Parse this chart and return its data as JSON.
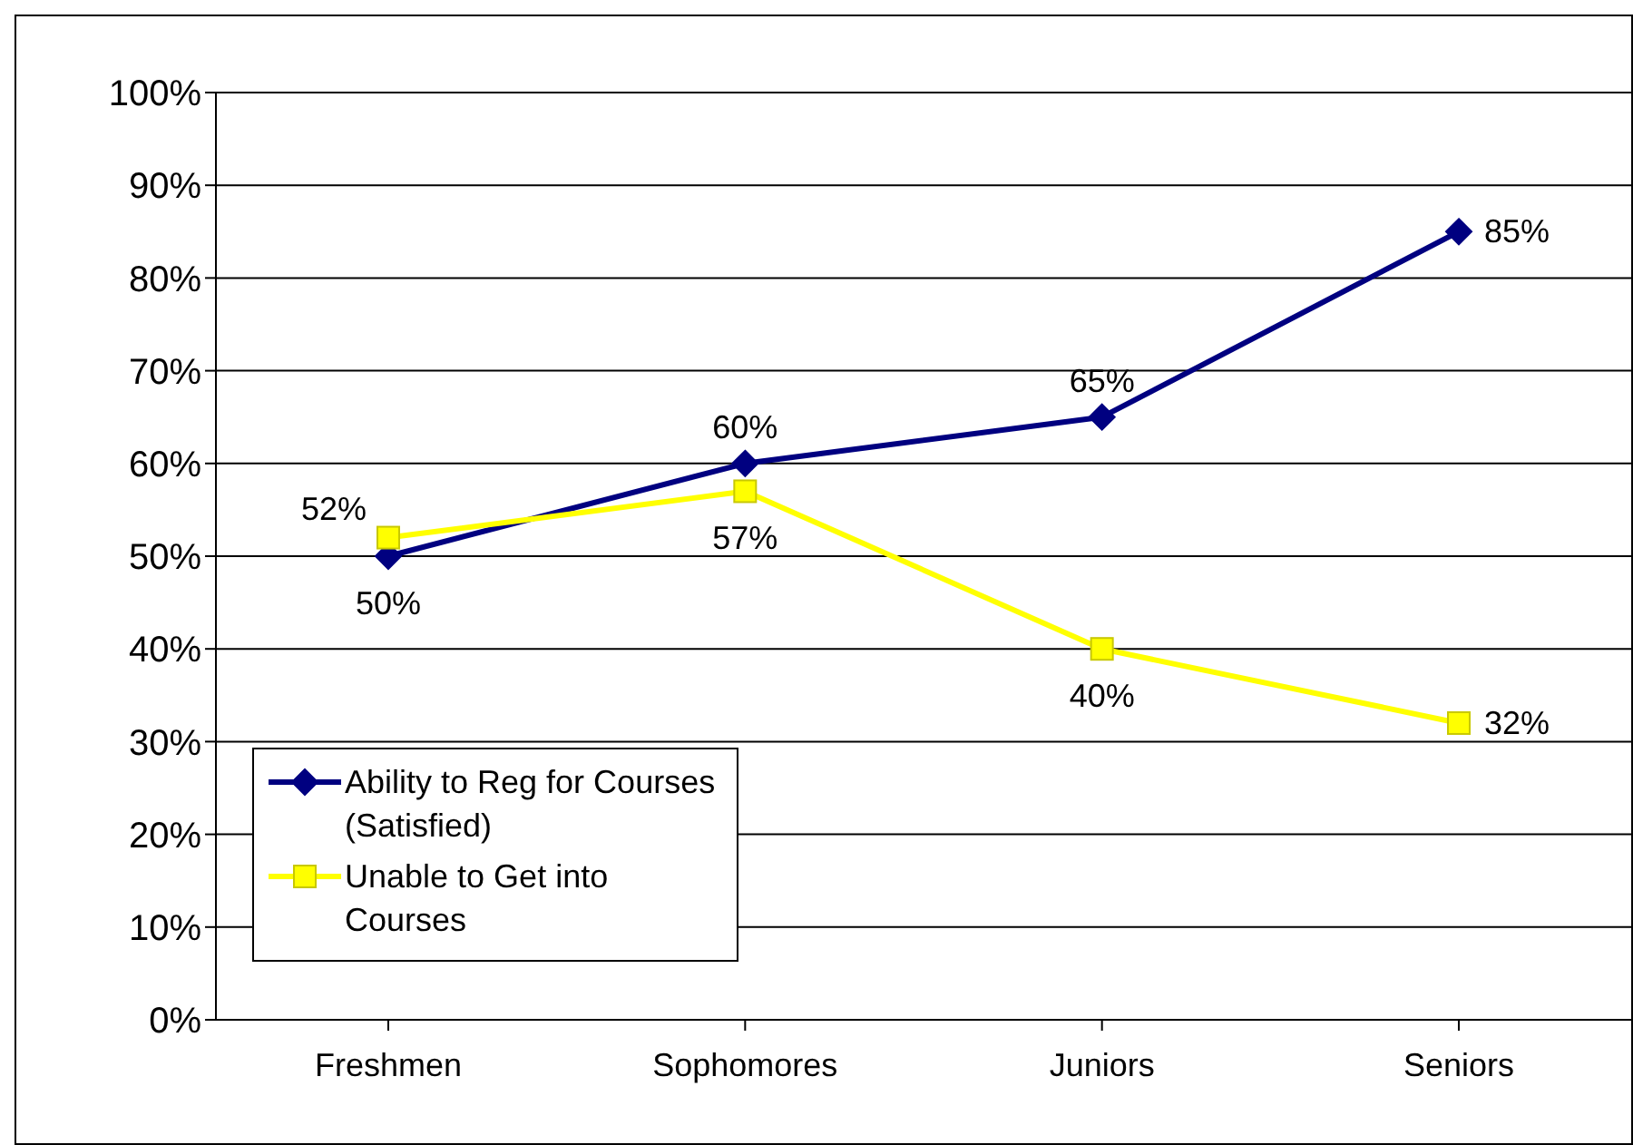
{
  "chart_data": {
    "type": "line",
    "categories": [
      "Freshmen",
      "Sophomores",
      "Juniors",
      "Seniors"
    ],
    "series": [
      {
        "name": "Ability to Reg for Courses (Satisfied)",
        "color": "#000080",
        "marker": "diamond",
        "values": [
          50,
          60,
          65,
          85
        ],
        "value_labels": [
          "50%",
          "60%",
          "65%",
          "85%"
        ]
      },
      {
        "name": "Unable to Get into Courses",
        "color": "#ffff00",
        "marker": "square",
        "values": [
          52,
          57,
          40,
          32
        ],
        "value_labels": [
          "52%",
          "57%",
          "40%",
          "32%"
        ]
      }
    ],
    "ylim": [
      0,
      100
    ],
    "yticks": [
      {
        "value": 0,
        "label": "0%"
      },
      {
        "value": 10,
        "label": "10%"
      },
      {
        "value": 20,
        "label": "20%"
      },
      {
        "value": 30,
        "label": "30%"
      },
      {
        "value": 40,
        "label": "40%"
      },
      {
        "value": 50,
        "label": "50%"
      },
      {
        "value": 60,
        "label": "60%"
      },
      {
        "value": 70,
        "label": "70%"
      },
      {
        "value": 80,
        "label": "80%"
      },
      {
        "value": 90,
        "label": "90%"
      },
      {
        "value": 100,
        "label": "100%"
      }
    ],
    "grid": "y",
    "legend": "bottom left",
    "line_style": "solid"
  }
}
